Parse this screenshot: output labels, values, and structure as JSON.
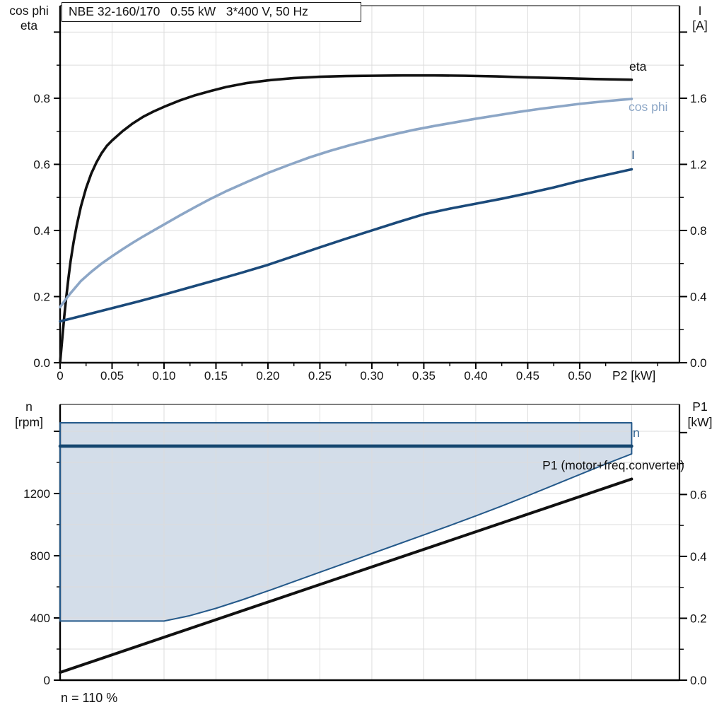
{
  "header": {
    "title": "NBE 32-160/170   0.55 kW   3*400 V, 50 Hz"
  },
  "labels": {
    "top_left_line1": "cos phi",
    "top_left_line2": "eta",
    "top_right_line1": "I",
    "top_right_line2": "[A]",
    "bottom_left_line1": "n",
    "bottom_left_line2": "[rpm]",
    "bottom_right_line1": "P1",
    "bottom_right_line2": "[kW]",
    "x_axis_label": "P2 [kW]",
    "curve_eta": "eta",
    "curve_cosphi": "cos phi",
    "curve_I": "I",
    "curve_n": "n",
    "curve_P1": "P1 (motor+freq.converter)",
    "footnote": "n = 110 %"
  },
  "colors": {
    "eta_curve": "#111111",
    "cosphi_curve": "#8CA6C6",
    "I_curve": "#1B4A7A",
    "n_curve": "#14466F",
    "P1_curve": "#111111",
    "area_fill": "#D3DDE9",
    "area_stroke": "#24598A",
    "grid": "#DCDCDC",
    "axis": "#000000",
    "frame_top": "#555555"
  },
  "chart_data": [
    {
      "type": "line",
      "title": "NBE 32-160/170   0.55 kW   3*400 V, 50 Hz",
      "xlabel": "P2 [kW]",
      "x_range": [
        0,
        0.596
      ],
      "x_ticks": [
        0,
        0.05,
        0.1,
        0.15,
        0.2,
        0.25,
        0.3,
        0.35,
        0.4,
        0.45,
        0.5
      ],
      "x_tick_labels": [
        "0",
        "0.05",
        "0.10",
        "0.15",
        "0.20",
        "0.25",
        "0.30",
        "0.35",
        "0.40",
        "0.45",
        "0.50"
      ],
      "x_minor_step": 0.025,
      "grid": true,
      "y_left": {
        "label": "cos phi / eta",
        "range": [
          0,
          1.08
        ],
        "ticks": [
          0.0,
          0.2,
          0.4,
          0.6,
          0.8
        ],
        "minor_step": 0.1
      },
      "y_right": {
        "label": "I [A]",
        "range": [
          0,
          2.16
        ],
        "ticks": [
          0.0,
          0.4,
          0.8,
          1.2,
          1.6
        ],
        "minor_step": 0.2
      },
      "series": [
        {
          "name": "eta",
          "axis": "left",
          "color": "#111111",
          "width": 3.6,
          "points": [
            [
              0,
              0
            ],
            [
              0.002,
              0.07
            ],
            [
              0.004,
              0.14
            ],
            [
              0.006,
              0.2
            ],
            [
              0.008,
              0.255
            ],
            [
              0.01,
              0.305
            ],
            [
              0.013,
              0.365
            ],
            [
              0.016,
              0.415
            ],
            [
              0.02,
              0.472
            ],
            [
              0.025,
              0.528
            ],
            [
              0.03,
              0.572
            ],
            [
              0.035,
              0.606
            ],
            [
              0.04,
              0.634
            ],
            [
              0.045,
              0.656
            ],
            [
              0.05,
              0.672
            ],
            [
              0.06,
              0.7
            ],
            [
              0.07,
              0.724
            ],
            [
              0.08,
              0.744
            ],
            [
              0.09,
              0.76
            ],
            [
              0.1,
              0.774
            ],
            [
              0.115,
              0.793
            ],
            [
              0.13,
              0.809
            ],
            [
              0.145,
              0.822
            ],
            [
              0.16,
              0.834
            ],
            [
              0.18,
              0.846
            ],
            [
              0.2,
              0.854
            ],
            [
              0.225,
              0.861
            ],
            [
              0.25,
              0.865
            ],
            [
              0.275,
              0.867
            ],
            [
              0.3,
              0.868
            ],
            [
              0.33,
              0.869
            ],
            [
              0.36,
              0.869
            ],
            [
              0.39,
              0.868
            ],
            [
              0.42,
              0.866
            ],
            [
              0.45,
              0.863
            ],
            [
              0.48,
              0.861
            ],
            [
              0.515,
              0.858
            ],
            [
              0.55,
              0.856
            ]
          ]
        },
        {
          "name": "cos phi",
          "axis": "left",
          "color": "#8CA6C6",
          "width": 3.6,
          "points": [
            [
              0,
              0.168
            ],
            [
              0.005,
              0.19
            ],
            [
              0.01,
              0.21
            ],
            [
              0.02,
              0.247
            ],
            [
              0.03,
              0.275
            ],
            [
              0.04,
              0.3
            ],
            [
              0.05,
              0.322
            ],
            [
              0.06,
              0.343
            ],
            [
              0.07,
              0.363
            ],
            [
              0.08,
              0.382
            ],
            [
              0.09,
              0.4
            ],
            [
              0.1,
              0.418
            ],
            [
              0.115,
              0.445
            ],
            [
              0.13,
              0.471
            ],
            [
              0.145,
              0.496
            ],
            [
              0.16,
              0.519
            ],
            [
              0.18,
              0.547
            ],
            [
              0.2,
              0.574
            ],
            [
              0.22,
              0.598
            ],
            [
              0.24,
              0.621
            ],
            [
              0.26,
              0.641
            ],
            [
              0.28,
              0.659
            ],
            [
              0.3,
              0.675
            ],
            [
              0.32,
              0.69
            ],
            [
              0.34,
              0.704
            ],
            [
              0.36,
              0.716
            ],
            [
              0.38,
              0.727
            ],
            [
              0.4,
              0.738
            ],
            [
              0.42,
              0.748
            ],
            [
              0.44,
              0.758
            ],
            [
              0.46,
              0.767
            ],
            [
              0.48,
              0.775
            ],
            [
              0.5,
              0.783
            ],
            [
              0.525,
              0.791
            ],
            [
              0.55,
              0.798
            ]
          ]
        },
        {
          "name": "I",
          "axis": "right",
          "color": "#1B4A7A",
          "width": 3.6,
          "points": [
            [
              0,
              0.25
            ],
            [
              0.025,
              0.29
            ],
            [
              0.05,
              0.33
            ],
            [
              0.075,
              0.37
            ],
            [
              0.1,
              0.412
            ],
            [
              0.125,
              0.456
            ],
            [
              0.15,
              0.5
            ],
            [
              0.175,
              0.545
            ],
            [
              0.2,
              0.592
            ],
            [
              0.225,
              0.645
            ],
            [
              0.25,
              0.698
            ],
            [
              0.275,
              0.75
            ],
            [
              0.3,
              0.8
            ],
            [
              0.325,
              0.85
            ],
            [
              0.35,
              0.898
            ],
            [
              0.375,
              0.932
            ],
            [
              0.4,
              0.962
            ],
            [
              0.425,
              0.992
            ],
            [
              0.45,
              1.025
            ],
            [
              0.475,
              1.06
            ],
            [
              0.5,
              1.1
            ],
            [
              0.525,
              1.135
            ],
            [
              0.55,
              1.17
            ]
          ]
        }
      ]
    },
    {
      "type": "line+area",
      "title": "",
      "xlabel": "",
      "x_range": [
        0,
        0.596
      ],
      "grid": true,
      "y_left": {
        "label": "n [rpm]",
        "range": [
          0,
          1773
        ],
        "ticks": [
          0,
          400,
          800,
          1200
        ],
        "minor_step": 200
      },
      "y_right": {
        "label": "P1 [kW]",
        "range": [
          0,
          0.891
        ],
        "ticks": [
          0.0,
          0.2,
          0.4,
          0.6
        ],
        "minor_step": 0.1
      },
      "area": {
        "name": "speed operating range",
        "fill": "#D3DDE9",
        "stroke": "#24598A",
        "top_n": 1655,
        "right_x": 0.55,
        "bottom_points": [
          [
            0,
            380
          ],
          [
            0.1,
            380
          ],
          [
            0.125,
            415
          ],
          [
            0.15,
            462
          ],
          [
            0.175,
            516
          ],
          [
            0.2,
            574
          ],
          [
            0.225,
            634
          ],
          [
            0.25,
            694
          ],
          [
            0.275,
            754
          ],
          [
            0.3,
            814
          ],
          [
            0.325,
            874
          ],
          [
            0.35,
            934
          ],
          [
            0.375,
            994
          ],
          [
            0.4,
            1056
          ],
          [
            0.425,
            1120
          ],
          [
            0.45,
            1186
          ],
          [
            0.475,
            1254
          ],
          [
            0.5,
            1322
          ],
          [
            0.525,
            1390
          ],
          [
            0.55,
            1455
          ]
        ]
      },
      "series": [
        {
          "name": "n",
          "axis": "left",
          "color": "#14466F",
          "width": 4.6,
          "points": [
            [
              0,
              1505
            ],
            [
              0.55,
              1505
            ]
          ]
        },
        {
          "name": "P1 (motor+freq.converter)",
          "axis": "right",
          "color": "#111111",
          "width": 4,
          "points": [
            [
              0,
              0.025
            ],
            [
              0.55,
              0.65
            ]
          ]
        }
      ],
      "footnote": "n = 110 %"
    }
  ]
}
